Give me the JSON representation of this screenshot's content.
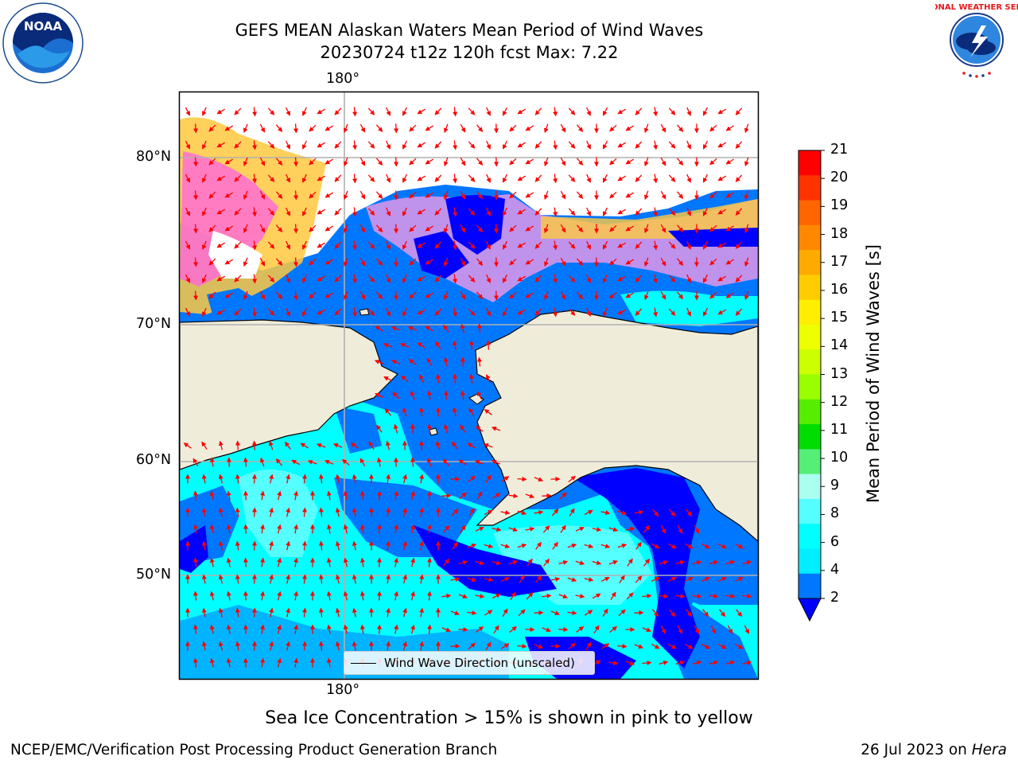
{
  "title": {
    "line1": "GEFS MEAN Alaskan Waters Mean Period of Wind Waves",
    "line2": "20230724 t12z 120h fcst   Max: 7.22"
  },
  "logos": {
    "left": "NOAA",
    "left_ring": "NATIONAL OCEANIC AND ATMOSPHERIC ADMINISTRATION · U.S. DEPARTMENT OF COMMERCE",
    "right_ring": "NATIONAL WEATHER SERVICE"
  },
  "map": {
    "lon_label_top": "180°",
    "lon_label_bottom": "180°",
    "lat_labels": [
      "80°N",
      "70°N",
      "60°N",
      "50°N"
    ],
    "land_color": "#efedda",
    "legend_label": "Wind Wave Direction (unscaled)",
    "arrow_color": "#ff0000"
  },
  "colorbar": {
    "label": "Mean Period of Wind Waves [s]",
    "ticks": [
      "21",
      "20",
      "19",
      "18",
      "17",
      "16",
      "15",
      "14",
      "13",
      "12",
      "11",
      "10",
      "9",
      "8",
      "6",
      "4",
      "2"
    ],
    "colors": [
      "#ff0000",
      "#ff3300",
      "#ff6600",
      "#ff8800",
      "#ffaa00",
      "#ffcc00",
      "#ffee00",
      "#eeff00",
      "#ccff00",
      "#99ff00",
      "#55ee00",
      "#00dd00",
      "#55ee77",
      "#aaffee",
      "#55ffff",
      "#00ffff",
      "#00eeff",
      "#0077ff"
    ],
    "extend_color": "#0000ff"
  },
  "footnote": "Sea Ice Concentration > 15% is shown in pink to yellow",
  "credit_left": "NCEP/EMC/Verification Post Processing Product Generation Branch",
  "credit_right_prefix": "26 Jul 2023 on ",
  "credit_right_machine": "Hera"
}
